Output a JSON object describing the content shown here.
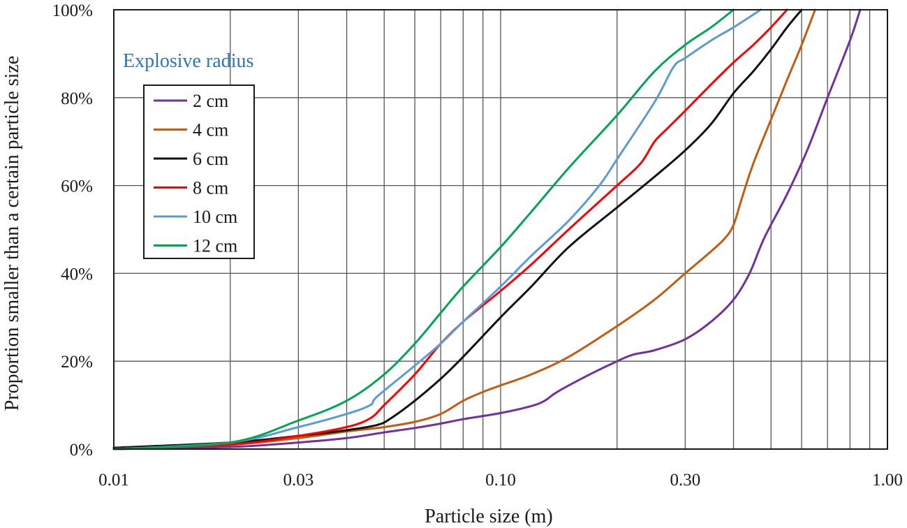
{
  "chart_data": {
    "type": "line",
    "xscale": "log",
    "xlim": [
      0.01,
      1.0
    ],
    "ylim": [
      0,
      100
    ],
    "xlabel": "Particle size (m)",
    "ylabel": "Proportion smaller than a certain particle size",
    "x_tick_labels": [
      {
        "value": 0.01,
        "label": "0.01"
      },
      {
        "value": 0.03,
        "label": "0.03"
      },
      {
        "value": 0.1,
        "label": "0.10"
      },
      {
        "value": 0.3,
        "label": "0.30"
      },
      {
        "value": 1.0,
        "label": "1.00"
      }
    ],
    "y_tick_labels": [
      {
        "value": 0,
        "label": "0%"
      },
      {
        "value": 20,
        "label": "20%"
      },
      {
        "value": 40,
        "label": "40%"
      },
      {
        "value": 60,
        "label": "60%"
      },
      {
        "value": 80,
        "label": "80%"
      },
      {
        "value": 100,
        "label": "100%"
      }
    ],
    "x_gridlines": [
      0.01,
      0.02,
      0.03,
      0.04,
      0.05,
      0.06,
      0.07,
      0.08,
      0.09,
      0.1,
      0.2,
      0.3,
      0.4,
      0.5,
      0.6,
      0.7,
      0.8,
      0.9,
      1.0
    ],
    "y_gridlines": [
      0,
      20,
      40,
      60,
      80,
      100
    ],
    "legend": {
      "title": "Explosive radius",
      "title_color": "#2e75b6",
      "placement": "top-left"
    },
    "series": [
      {
        "name": "2 cm",
        "color": "#7030a0",
        "points": [
          [
            0.01,
            0
          ],
          [
            0.02,
            0.5
          ],
          [
            0.03,
            1.5
          ],
          [
            0.04,
            2.5
          ],
          [
            0.05,
            3.8
          ],
          [
            0.06,
            4.8
          ],
          [
            0.07,
            5.8
          ],
          [
            0.08,
            6.8
          ],
          [
            0.1,
            8.2
          ],
          [
            0.12,
            9.8
          ],
          [
            0.13,
            11
          ],
          [
            0.14,
            13
          ],
          [
            0.17,
            17
          ],
          [
            0.2,
            20
          ],
          [
            0.22,
            21.5
          ],
          [
            0.25,
            22.5
          ],
          [
            0.3,
            25
          ],
          [
            0.35,
            29
          ],
          [
            0.4,
            34
          ],
          [
            0.44,
            40
          ],
          [
            0.48,
            48
          ],
          [
            0.55,
            58
          ],
          [
            0.62,
            68
          ],
          [
            0.7,
            80
          ],
          [
            0.8,
            93
          ],
          [
            0.85,
            100
          ]
        ]
      },
      {
        "name": "4 cm",
        "color": "#c55a11",
        "points": [
          [
            0.01,
            0
          ],
          [
            0.02,
            1
          ],
          [
            0.03,
            2.5
          ],
          [
            0.04,
            4
          ],
          [
            0.05,
            5
          ],
          [
            0.06,
            6.2
          ],
          [
            0.07,
            8
          ],
          [
            0.08,
            11
          ],
          [
            0.09,
            13
          ],
          [
            0.1,
            14.5
          ],
          [
            0.12,
            17
          ],
          [
            0.15,
            21
          ],
          [
            0.2,
            28
          ],
          [
            0.25,
            34
          ],
          [
            0.3,
            40
          ],
          [
            0.35,
            45
          ],
          [
            0.38,
            48
          ],
          [
            0.4,
            51
          ],
          [
            0.42,
            57
          ],
          [
            0.45,
            65
          ],
          [
            0.5,
            75
          ],
          [
            0.55,
            84
          ],
          [
            0.6,
            92
          ],
          [
            0.65,
            100
          ]
        ]
      },
      {
        "name": "6 cm",
        "color": "#111111",
        "points": [
          [
            0.01,
            0.3
          ],
          [
            0.02,
            1.5
          ],
          [
            0.03,
            3
          ],
          [
            0.04,
            4.3
          ],
          [
            0.048,
            5.5
          ],
          [
            0.052,
            7
          ],
          [
            0.06,
            11
          ],
          [
            0.07,
            16
          ],
          [
            0.08,
            21
          ],
          [
            0.1,
            30
          ],
          [
            0.12,
            37
          ],
          [
            0.15,
            46
          ],
          [
            0.2,
            55
          ],
          [
            0.25,
            62
          ],
          [
            0.3,
            68
          ],
          [
            0.35,
            74
          ],
          [
            0.4,
            81
          ],
          [
            0.45,
            86
          ],
          [
            0.5,
            91
          ],
          [
            0.55,
            96
          ],
          [
            0.6,
            100
          ]
        ]
      },
      {
        "name": "8 cm",
        "color": "#ff0000",
        "points": [
          [
            0.01,
            0
          ],
          [
            0.02,
            1
          ],
          [
            0.03,
            3
          ],
          [
            0.04,
            5
          ],
          [
            0.046,
            7
          ],
          [
            0.05,
            10
          ],
          [
            0.06,
            17
          ],
          [
            0.07,
            24
          ],
          [
            0.08,
            29
          ],
          [
            0.1,
            36
          ],
          [
            0.12,
            42
          ],
          [
            0.15,
            50
          ],
          [
            0.2,
            60
          ],
          [
            0.23,
            65
          ],
          [
            0.25,
            70
          ],
          [
            0.27,
            73
          ],
          [
            0.3,
            77
          ],
          [
            0.35,
            83
          ],
          [
            0.4,
            88
          ],
          [
            0.45,
            92
          ],
          [
            0.5,
            96
          ],
          [
            0.55,
            100
          ]
        ]
      },
      {
        "name": "10 cm",
        "color": "#5b9bd5",
        "points": [
          [
            0.01,
            0
          ],
          [
            0.02,
            1.5
          ],
          [
            0.03,
            5
          ],
          [
            0.04,
            8
          ],
          [
            0.046,
            10
          ],
          [
            0.048,
            12
          ],
          [
            0.06,
            19
          ],
          [
            0.07,
            24
          ],
          [
            0.08,
            29
          ],
          [
            0.1,
            37
          ],
          [
            0.12,
            44
          ],
          [
            0.15,
            52
          ],
          [
            0.18,
            60
          ],
          [
            0.2,
            66
          ],
          [
            0.25,
            79
          ],
          [
            0.28,
            87
          ],
          [
            0.3,
            89
          ],
          [
            0.35,
            93
          ],
          [
            0.4,
            96
          ],
          [
            0.47,
            100
          ]
        ]
      },
      {
        "name": "12 cm",
        "color": "#00a651",
        "points": [
          [
            0.01,
            0
          ],
          [
            0.02,
            1.5
          ],
          [
            0.03,
            6.5
          ],
          [
            0.04,
            11
          ],
          [
            0.05,
            17
          ],
          [
            0.06,
            24
          ],
          [
            0.07,
            31
          ],
          [
            0.08,
            37
          ],
          [
            0.1,
            46
          ],
          [
            0.12,
            54
          ],
          [
            0.15,
            64
          ],
          [
            0.2,
            76
          ],
          [
            0.25,
            86
          ],
          [
            0.3,
            92
          ],
          [
            0.35,
            96
          ],
          [
            0.4,
            100
          ]
        ]
      }
    ]
  }
}
